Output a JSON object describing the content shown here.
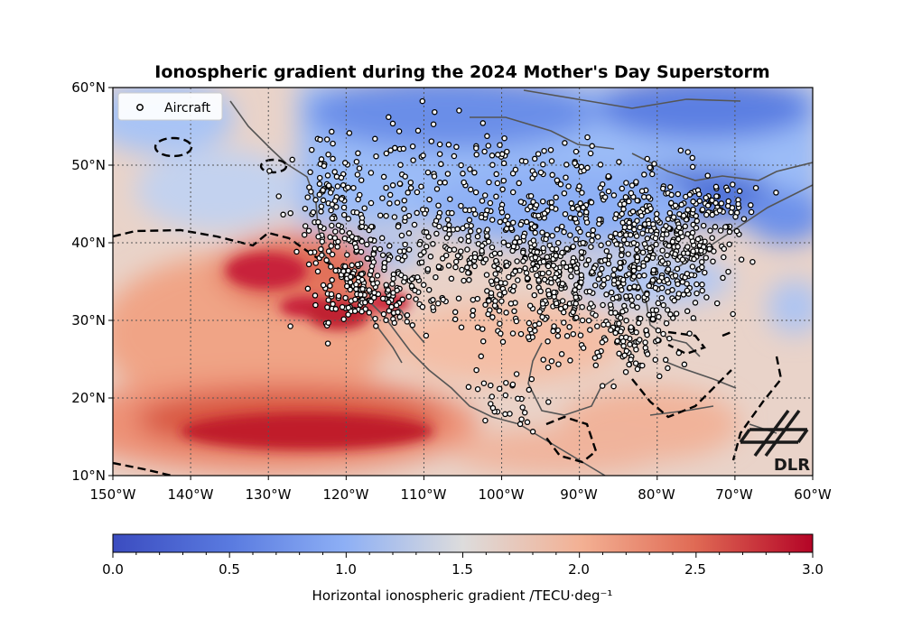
{
  "chart_data": {
    "type": "heatmap",
    "title": "Ionospheric gradient during the 2024 Mother's Day Superstorm",
    "x_ticks": [
      "150°W",
      "140°W",
      "130°W",
      "120°W",
      "110°W",
      "100°W",
      "90°W",
      "80°W",
      "70°W",
      "60°W"
    ],
    "y_ticks": [
      "10°N",
      "20°N",
      "30°N",
      "40°N",
      "50°N",
      "60°N"
    ],
    "xlim": [
      -150,
      -60
    ],
    "ylim": [
      10,
      60
    ],
    "grid": true,
    "legend": {
      "label": "Aircraft",
      "placement": "top-left"
    },
    "colorbar": {
      "label": "Horizontal ionospheric gradient /TECU·deg⁻¹",
      "ticks": [
        "0.0",
        "0.5",
        "1.0",
        "1.5",
        "2.0",
        "2.5",
        "3.0"
      ],
      "range": [
        0.0,
        3.0
      ],
      "colormap": "coolwarm"
    },
    "logo": "DLR",
    "colors": {
      "low": "#3b4cc0",
      "mid": "#dddcdc",
      "high": "#b40426",
      "land": "#555555",
      "gridline": "#555555"
    }
  }
}
